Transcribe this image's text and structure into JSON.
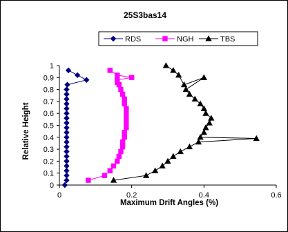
{
  "chart_data": {
    "type": "line",
    "title": "25S3bas14",
    "xlabel": "Maximum Drift Angles (%)",
    "ylabel": "Relative Height",
    "xlim": [
      0,
      0.6
    ],
    "ylim": [
      0,
      1
    ],
    "x_ticks": [
      "0",
      "0.2",
      "0.4",
      "0.6"
    ],
    "y_ticks": [
      "0",
      "0.1",
      "0.2",
      "0.3",
      "0.4",
      "0.5",
      "0.6",
      "0.7",
      "0.8",
      "0.9",
      "1"
    ],
    "grid": false,
    "legend_position": "top",
    "series": [
      {
        "name": "RDS",
        "color": "#000080",
        "marker": "diamond",
        "x": [
          0.015,
          0.02,
          0.02,
          0.02,
          0.02,
          0.02,
          0.02,
          0.02,
          0.02,
          0.02,
          0.02,
          0.02,
          0.02,
          0.02,
          0.02,
          0.02,
          0.02,
          0.02,
          0.02,
          0.02,
          0.02,
          0.022,
          0.075,
          0.05,
          0.025
        ],
        "y": [
          0.0,
          0.04,
          0.08,
          0.12,
          0.16,
          0.2,
          0.24,
          0.28,
          0.32,
          0.36,
          0.4,
          0.44,
          0.48,
          0.52,
          0.56,
          0.6,
          0.64,
          0.68,
          0.72,
          0.76,
          0.8,
          0.84,
          0.88,
          0.92,
          0.96
        ]
      },
      {
        "name": "NGH",
        "color": "#FF00FF",
        "marker": "square",
        "x": [
          0.08,
          0.125,
          0.14,
          0.15,
          0.16,
          0.165,
          0.17,
          0.175,
          0.175,
          0.18,
          0.18,
          0.185,
          0.185,
          0.185,
          0.185,
          0.185,
          0.18,
          0.18,
          0.175,
          0.17,
          0.165,
          0.16,
          0.16,
          0.2,
          0.16,
          0.14
        ],
        "y": [
          0.04,
          0.08,
          0.12,
          0.16,
          0.2,
          0.24,
          0.28,
          0.32,
          0.36,
          0.4,
          0.44,
          0.48,
          0.52,
          0.56,
          0.6,
          0.64,
          0.68,
          0.72,
          0.76,
          0.8,
          0.84,
          0.86,
          0.88,
          0.9,
          0.92,
          0.96
        ]
      },
      {
        "name": "TBS",
        "color": "#000000",
        "marker": "triangle",
        "x": [
          0.15,
          0.24,
          0.265,
          0.285,
          0.3,
          0.315,
          0.335,
          0.36,
          0.385,
          0.545,
          0.39,
          0.4,
          0.405,
          0.415,
          0.42,
          0.405,
          0.4,
          0.39,
          0.375,
          0.36,
          0.35,
          0.4,
          0.345,
          0.33,
          0.315,
          0.295
        ],
        "y": [
          0.04,
          0.08,
          0.12,
          0.16,
          0.2,
          0.24,
          0.28,
          0.32,
          0.36,
          0.39,
          0.4,
          0.44,
          0.48,
          0.52,
          0.56,
          0.6,
          0.64,
          0.68,
          0.72,
          0.76,
          0.8,
          0.9,
          0.84,
          0.92,
          0.96,
          1.0
        ]
      }
    ]
  }
}
